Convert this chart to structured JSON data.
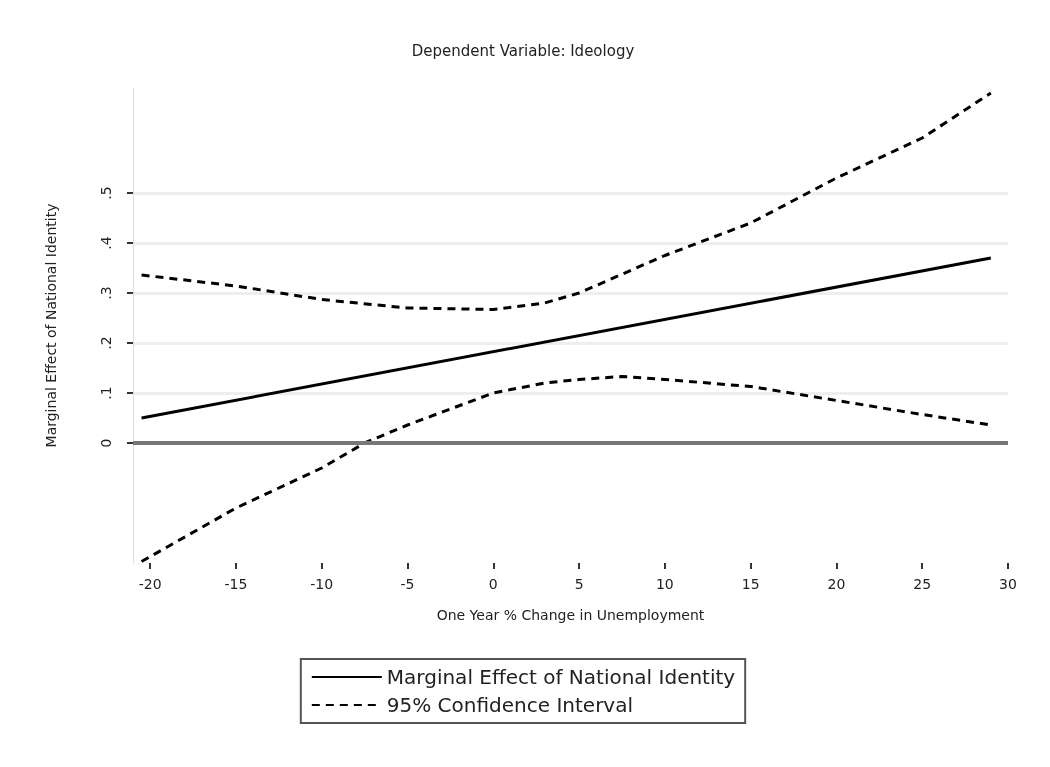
{
  "chart_data": {
    "type": "line",
    "title": "Dependent Variable: Ideology",
    "xlabel": "One Year % Change in Unemployment",
    "ylabel": "Marginal Effect of National Identity",
    "series": [
      {
        "name": "Marginal Effect of National Identity",
        "color": "#000000",
        "line_style": "solid",
        "x": [
          -20.5,
          29
        ],
        "values": [
          0.05,
          0.37
        ]
      },
      {
        "name": "95% Confidence Interval",
        "color": "#000000",
        "line_style": "dashed",
        "x": [
          -20.5,
          -15,
          -10,
          -5,
          0,
          3,
          5,
          10,
          15,
          20,
          25,
          29
        ],
        "values": [
          0.336,
          0.314,
          0.287,
          0.27,
          0.267,
          0.28,
          0.3,
          0.375,
          0.44,
          0.53,
          0.61,
          0.7
        ]
      },
      {
        "color": "#000000",
        "line_style": "dashed",
        "x": [
          -20.5,
          -15,
          -10,
          -7.5,
          -5,
          0,
          3,
          5,
          7.5,
          10,
          15,
          20,
          25,
          29
        ],
        "values": [
          -0.237,
          -0.13,
          -0.05,
          0,
          0.036,
          0.1,
          0.12,
          0.127,
          0.133,
          0.127,
          0.113,
          0.085,
          0.057,
          0.036
        ]
      }
    ],
    "xlim": [
      -21,
      30
    ],
    "xticks": [
      -20,
      -15,
      -10,
      -5,
      0,
      5,
      10,
      15,
      20,
      25,
      30
    ],
    "ylim": [
      -0.24,
      0.71
    ],
    "yticks": [
      {
        "value": 0,
        "label": "0"
      },
      {
        "value": 0.1,
        "label": ".1"
      },
      {
        "value": 0.2,
        "label": ".2"
      },
      {
        "value": 0.3,
        "label": ".3"
      },
      {
        "value": 0.4,
        "label": ".4"
      },
      {
        "value": 0.5,
        "label": ".5"
      }
    ],
    "grid": "y",
    "legend": "bottom",
    "marker": "none",
    "ref_lines": [
      {
        "axis": "y",
        "value": 0,
        "color": "#777777"
      }
    ]
  }
}
